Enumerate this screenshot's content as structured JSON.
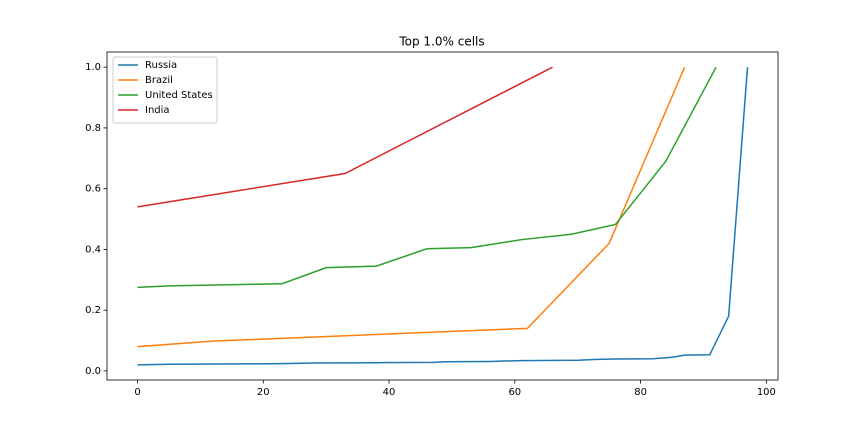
{
  "chart_data": {
    "type": "line",
    "title": "Top 1.0% cells",
    "series": [
      {
        "name": "Russia",
        "color": "#1f77b4",
        "x": [
          0,
          5,
          17,
          23,
          28,
          38,
          47,
          49,
          56,
          61,
          70,
          73,
          76,
          82,
          85,
          87,
          91,
          94,
          97
        ],
        "values": [
          0.02,
          0.022,
          0.023,
          0.024,
          0.026,
          0.027,
          0.028,
          0.03,
          0.031,
          0.034,
          0.035,
          0.038,
          0.039,
          0.04,
          0.045,
          0.052,
          0.053,
          0.18,
          1.0
        ]
      },
      {
        "name": "Brazil",
        "color": "#ff7f0e",
        "x": [
          0,
          12,
          62,
          75,
          87
        ],
        "values": [
          0.08,
          0.098,
          0.14,
          0.42,
          1.0
        ]
      },
      {
        "name": "United States",
        "color": "#2ca02c",
        "x": [
          0,
          5,
          23,
          30,
          38,
          46,
          53,
          61,
          69,
          76,
          84,
          92
        ],
        "values": [
          0.275,
          0.28,
          0.287,
          0.34,
          0.345,
          0.402,
          0.406,
          0.432,
          0.45,
          0.482,
          0.69,
          1.0
        ]
      },
      {
        "name": "India",
        "color": "#d62728",
        "x": [
          0,
          33,
          66
        ],
        "values": [
          0.54,
          0.65,
          1.0
        ]
      }
    ],
    "xlim": [
      -4.85,
      101.85
    ],
    "ylim": [
      -0.03,
      1.05
    ],
    "xticks": [
      0,
      20,
      40,
      60,
      80,
      100
    ],
    "yticks": [
      {
        "value": 0,
        "label": "0.0"
      },
      0.2,
      0.4,
      0.6,
      0.8,
      {
        "value": 1,
        "label": "1.0"
      }
    ],
    "legend": "upper left"
  }
}
